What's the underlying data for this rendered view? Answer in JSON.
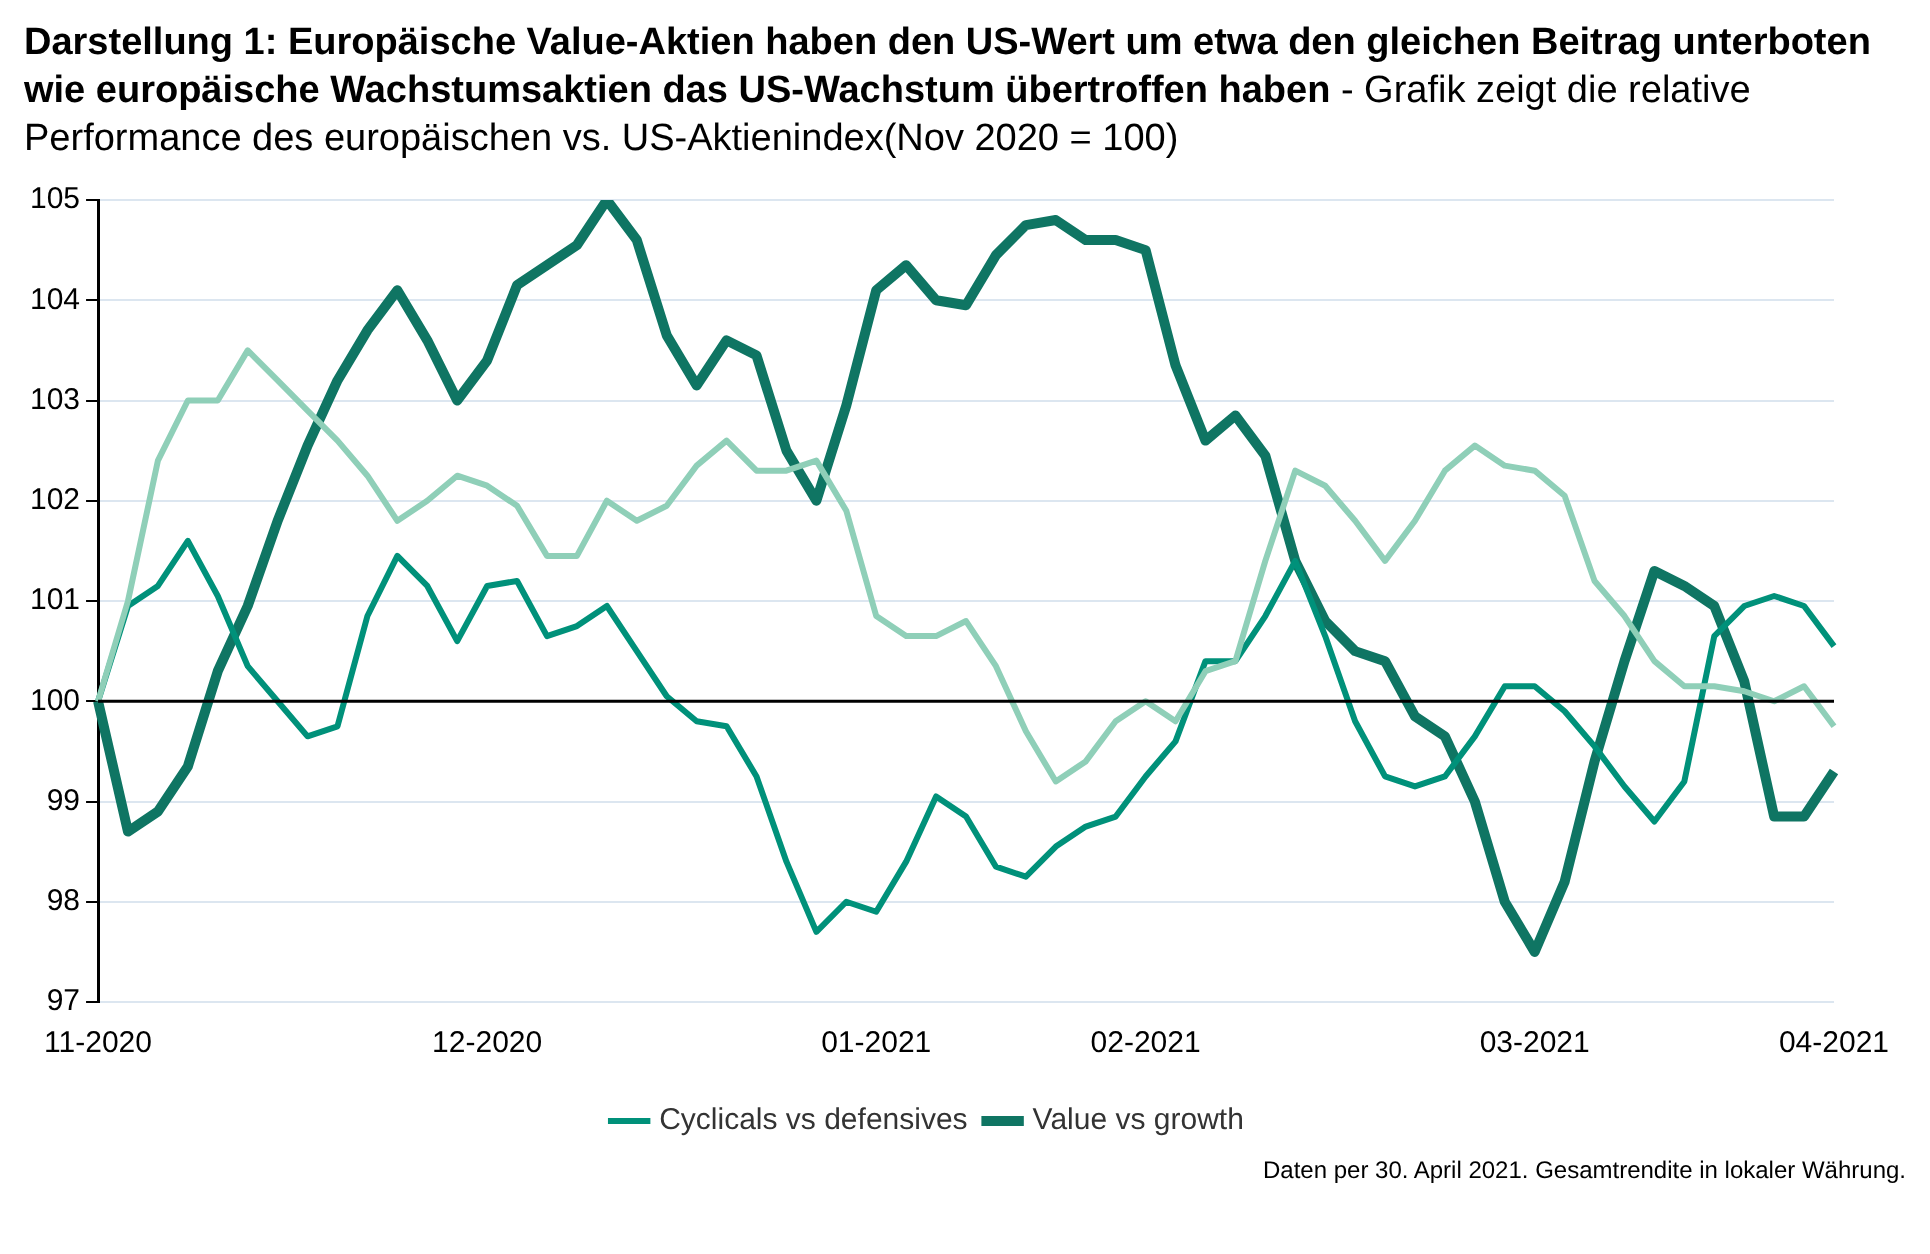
{
  "chart_data": {
    "type": "line",
    "title": "Darstellung 1: Europäische Value-Aktien haben den US-Wert um etwa den gleichen Beitrag unterboten wie europäische Wachstumsaktien das US-Wachstum übertroffen haben",
    "subtitle": "- Grafik zeigt die relative Performance des europäischen vs. US-Aktienindex(Nov 2020 = 100)",
    "annotations": [
      "Daten per 30. April 2021. Gesamtrendite in lokaler Währung."
    ],
    "categories": [
      "11-2020",
      null,
      null,
      null,
      null,
      null,
      null,
      null,
      null,
      null,
      null,
      null,
      null,
      "12-2020",
      null,
      null,
      null,
      null,
      null,
      null,
      null,
      null,
      null,
      null,
      null,
      null,
      "01-2021",
      null,
      null,
      null,
      null,
      null,
      null,
      null,
      null,
      "02-2021",
      null,
      null,
      null,
      null,
      null,
      null,
      null,
      null,
      null,
      null,
      null,
      null,
      "03-2021",
      null,
      null,
      null,
      null,
      null,
      null,
      null,
      null,
      null,
      "04-2021"
    ],
    "series": [
      {
        "color": "#8fcfb8",
        "values": [
          100,
          101.0,
          102.4,
          103.0,
          103.0,
          103.5,
          103.2,
          102.9,
          102.6,
          102.25,
          101.8,
          102.0,
          102.25,
          102.15,
          101.95,
          101.45,
          101.45,
          102.0,
          101.8,
          101.95,
          102.35,
          102.6,
          102.3,
          102.3,
          102.4,
          101.9,
          100.85,
          100.65,
          100.65,
          100.8,
          100.35,
          99.7,
          99.2,
          99.4,
          99.8,
          100.0,
          99.8,
          100.3,
          100.4,
          101.4,
          102.3,
          102.15,
          101.8,
          101.4,
          101.8,
          102.3,
          102.55,
          102.35,
          102.3,
          102.05,
          101.2,
          100.85,
          100.4,
          100.15,
          100.15,
          100.1,
          100.0,
          100.15,
          99.75
        ]
      },
      {
        "name": "Cyclicals vs defensives",
        "color": "#00917a",
        "values": [
          100,
          100.95,
          101.15,
          101.6,
          101.05,
          100.35,
          100.0,
          99.65,
          99.75,
          100.85,
          101.45,
          101.15,
          100.6,
          101.15,
          101.2,
          100.65,
          100.75,
          100.95,
          100.5,
          100.05,
          99.8,
          99.75,
          99.25,
          98.4,
          97.7,
          98.0,
          97.9,
          98.4,
          99.05,
          98.85,
          98.35,
          98.25,
          98.55,
          98.75,
          98.85,
          99.25,
          99.6,
          100.4,
          100.4,
          100.85,
          101.4,
          100.65,
          99.8,
          99.25,
          99.15,
          99.25,
          99.65,
          100.15,
          100.15,
          99.9,
          99.55,
          99.15,
          98.8,
          99.2,
          100.65,
          100.95,
          101.05,
          100.95,
          100.55
        ]
      },
      {
        "name": "Value vs growth",
        "color": "#0f7563",
        "values": [
          100,
          98.7,
          98.9,
          99.35,
          100.3,
          100.95,
          101.8,
          102.55,
          103.2,
          103.7,
          104.1,
          103.6,
          103.0,
          103.4,
          104.15,
          104.35,
          104.55,
          105.0,
          104.6,
          103.65,
          103.15,
          103.6,
          103.45,
          102.5,
          102.0,
          102.95,
          104.1,
          104.35,
          104.0,
          103.95,
          104.45,
          104.75,
          104.8,
          104.6,
          104.6,
          104.5,
          103.35,
          102.6,
          102.85,
          102.45,
          101.4,
          100.8,
          100.5,
          100.4,
          99.85,
          99.65,
          99.0,
          98.0,
          97.5,
          98.2,
          99.4,
          100.4,
          101.3,
          101.15,
          100.95,
          100.2,
          98.85,
          98.85,
          99.3
        ]
      }
    ],
    "ylim": [
      97,
      105
    ],
    "yticks": [
      97,
      98,
      99,
      100,
      101,
      102,
      103,
      104,
      105
    ],
    "grid": "y",
    "legend": "bottom",
    "ref_lines": [
      {
        "axis": "y",
        "value": 100,
        "color": "#000000"
      }
    ]
  }
}
